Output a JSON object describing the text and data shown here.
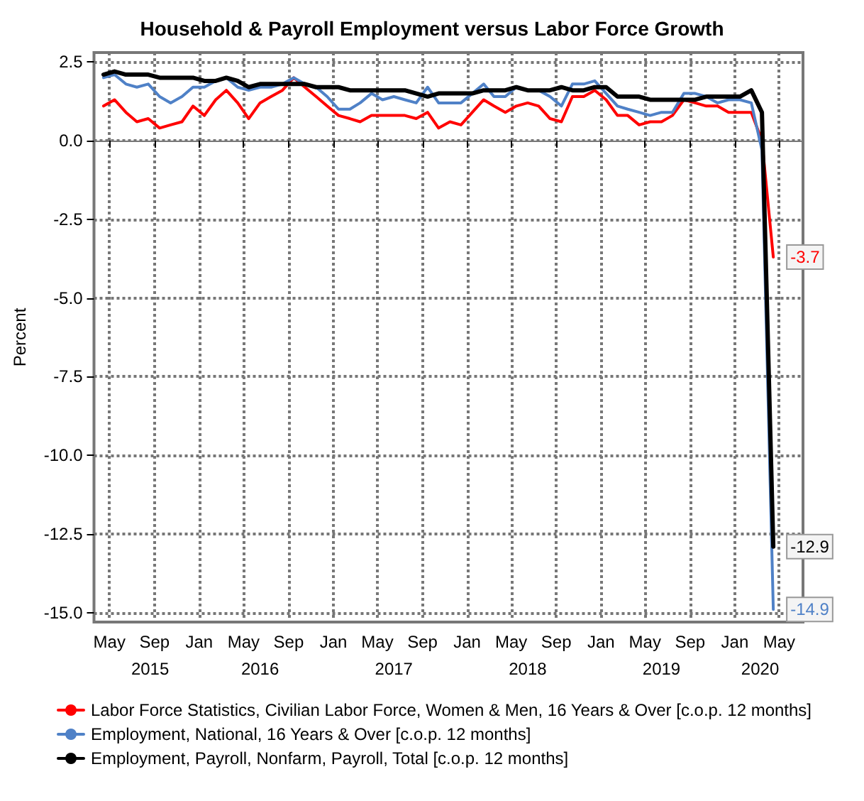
{
  "chart_data": {
    "type": "line",
    "title": "Household & Payroll Employment versus Labor Force Growth",
    "ylabel": "Percent",
    "x": [
      "2015-04-15",
      "2015-05-15",
      "2015-06-15",
      "2015-07-15",
      "2015-08-15",
      "2015-09-15",
      "2015-10-15",
      "2015-11-15",
      "2015-12-15",
      "2016-01-15",
      "2016-02-15",
      "2016-03-15",
      "2016-04-15",
      "2016-05-15",
      "2016-06-15",
      "2016-07-15",
      "2016-08-15",
      "2016-09-15",
      "2016-10-15",
      "2016-11-15",
      "2016-12-15",
      "2017-01-15",
      "2017-02-15",
      "2017-03-15",
      "2017-04-15",
      "2017-05-15",
      "2017-06-15",
      "2017-07-15",
      "2017-08-15",
      "2017-09-15",
      "2017-10-15",
      "2017-11-15",
      "2017-12-15",
      "2018-01-15",
      "2018-02-15",
      "2018-03-15",
      "2018-04-15",
      "2018-05-15",
      "2018-06-15",
      "2018-07-15",
      "2018-08-15",
      "2018-09-15",
      "2018-10-15",
      "2018-11-15",
      "2018-12-15",
      "2019-01-15",
      "2019-02-15",
      "2019-03-15",
      "2019-04-15",
      "2019-05-15",
      "2019-06-15",
      "2019-07-15",
      "2019-08-15",
      "2019-09-15",
      "2019-10-15",
      "2019-11-15",
      "2019-12-15",
      "2020-01-15",
      "2020-02-15",
      "2020-03-15",
      "2020-04-15"
    ],
    "series": [
      {
        "name": "Labor Force Statistics, Civilian Labor Force, Women & Men, 16 Years & Over [c.o.p. 12 months]",
        "color": "#ff0000",
        "values": [
          1.1,
          1.3,
          0.9,
          0.6,
          0.7,
          0.4,
          0.5,
          0.6,
          1.1,
          0.8,
          1.3,
          1.6,
          1.2,
          0.7,
          1.2,
          1.4,
          1.6,
          2.0,
          1.7,
          1.4,
          1.1,
          0.8,
          0.7,
          0.6,
          0.8,
          0.8,
          0.8,
          0.8,
          0.7,
          0.9,
          0.4,
          0.6,
          0.5,
          0.9,
          1.3,
          1.1,
          0.9,
          1.1,
          1.2,
          1.1,
          0.7,
          0.6,
          1.4,
          1.4,
          1.6,
          1.3,
          0.8,
          0.8,
          0.5,
          0.6,
          0.6,
          0.8,
          1.3,
          1.2,
          1.1,
          1.1,
          0.9,
          0.9,
          0.9,
          0.0,
          -3.7
        ],
        "value_labels": [
          null,
          null,
          null,
          null,
          null,
          null,
          null,
          null,
          null,
          null,
          null,
          null,
          null,
          null,
          null,
          null,
          null,
          null,
          null,
          null,
          null,
          null,
          null,
          null,
          null,
          null,
          null,
          null,
          null,
          null,
          null,
          null,
          null,
          null,
          null,
          null,
          null,
          null,
          null,
          null,
          null,
          null,
          null,
          null,
          null,
          null,
          null,
          null,
          null,
          null,
          null,
          null,
          null,
          null,
          null,
          null,
          null,
          null,
          null,
          null,
          "-3.7"
        ]
      },
      {
        "name": "Employment, National, 16 Years & Over [c.o.p. 12 months]",
        "color": "#4f81c7",
        "values": [
          2.0,
          2.1,
          1.8,
          1.7,
          1.8,
          1.4,
          1.2,
          1.4,
          1.7,
          1.7,
          1.9,
          2.0,
          1.7,
          1.6,
          1.7,
          1.7,
          1.8,
          2.0,
          1.8,
          1.7,
          1.4,
          1.0,
          1.0,
          1.2,
          1.5,
          1.3,
          1.4,
          1.3,
          1.2,
          1.7,
          1.2,
          1.2,
          1.2,
          1.5,
          1.8,
          1.4,
          1.4,
          1.7,
          1.6,
          1.6,
          1.4,
          1.1,
          1.8,
          1.8,
          1.9,
          1.5,
          1.1,
          1.0,
          0.9,
          0.8,
          0.9,
          0.9,
          1.5,
          1.5,
          1.4,
          1.2,
          1.3,
          1.3,
          1.2,
          -0.3,
          -14.9
        ],
        "value_labels": [
          null,
          null,
          null,
          null,
          null,
          null,
          null,
          null,
          null,
          null,
          null,
          null,
          null,
          null,
          null,
          null,
          null,
          null,
          null,
          null,
          null,
          null,
          null,
          null,
          null,
          null,
          null,
          null,
          null,
          null,
          null,
          null,
          null,
          null,
          null,
          null,
          null,
          null,
          null,
          null,
          null,
          null,
          null,
          null,
          null,
          null,
          null,
          null,
          null,
          null,
          null,
          null,
          null,
          null,
          null,
          null,
          null,
          null,
          null,
          null,
          "-14.9"
        ]
      },
      {
        "name": "Employment, Payroll, Nonfarm, Payroll, Total [c.o.p. 12 months]",
        "color": "#000000",
        "values": [
          2.1,
          2.2,
          2.1,
          2.1,
          2.1,
          2.0,
          2.0,
          2.0,
          2.0,
          1.9,
          1.9,
          2.0,
          1.9,
          1.7,
          1.8,
          1.8,
          1.8,
          1.8,
          1.8,
          1.7,
          1.7,
          1.7,
          1.6,
          1.6,
          1.6,
          1.6,
          1.6,
          1.6,
          1.5,
          1.4,
          1.5,
          1.5,
          1.5,
          1.5,
          1.6,
          1.6,
          1.6,
          1.7,
          1.6,
          1.6,
          1.6,
          1.7,
          1.6,
          1.6,
          1.7,
          1.7,
          1.4,
          1.4,
          1.4,
          1.3,
          1.3,
          1.3,
          1.3,
          1.3,
          1.4,
          1.4,
          1.4,
          1.4,
          1.6,
          0.9,
          -12.9
        ],
        "value_labels": [
          null,
          null,
          null,
          null,
          null,
          null,
          null,
          null,
          null,
          null,
          null,
          null,
          null,
          null,
          null,
          null,
          null,
          null,
          null,
          null,
          null,
          null,
          null,
          null,
          null,
          null,
          null,
          null,
          null,
          null,
          null,
          null,
          null,
          null,
          null,
          null,
          null,
          null,
          null,
          null,
          null,
          null,
          null,
          null,
          null,
          null,
          null,
          null,
          null,
          null,
          null,
          null,
          null,
          null,
          null,
          null,
          null,
          null,
          null,
          null,
          "-12.9"
        ]
      }
    ],
    "xlim": [
      "2015-03-20",
      "2020-07-05"
    ],
    "xticks": [
      {
        "value": "2015-05",
        "label": "May"
      },
      {
        "value": "2015-09",
        "label": "Sep"
      },
      {
        "value": "2016-01",
        "label": "Jan"
      },
      {
        "value": "2016-05",
        "label": "May"
      },
      {
        "value": "2016-09",
        "label": "Sep"
      },
      {
        "value": "2017-01",
        "label": "Jan"
      },
      {
        "value": "2017-05",
        "label": "May"
      },
      {
        "value": "2017-09",
        "label": "Sep"
      },
      {
        "value": "2018-01",
        "label": "Jan"
      },
      {
        "value": "2018-05",
        "label": "May"
      },
      {
        "value": "2018-09",
        "label": "Sep"
      },
      {
        "value": "2019-01",
        "label": "Jan"
      },
      {
        "value": "2019-05",
        "label": "May"
      },
      {
        "value": "2019-09",
        "label": "Sep"
      },
      {
        "value": "2020-01",
        "label": "Jan"
      },
      {
        "value": "2020-05",
        "label": "May"
      }
    ],
    "x2lim": [
      "2015-03-20",
      "2020-07-05"
    ],
    "x2ticks": [
      {
        "value": "2015-08-20",
        "label": "2015"
      },
      {
        "value": "2016-06-15",
        "label": "2016"
      },
      {
        "value": "2017-06-15",
        "label": "2017"
      },
      {
        "value": "2018-06-15",
        "label": "2018"
      },
      {
        "value": "2019-06-15",
        "label": "2019"
      },
      {
        "value": "2020-03-10",
        "label": "2020"
      }
    ],
    "ylim": [
      -15.3,
      2.8
    ],
    "yticks": [
      2.5,
      {
        "value": 0,
        "label": "0.0"
      },
      -2.5,
      {
        "value": -5,
        "label": "-5.0"
      },
      -7.5,
      {
        "value": -10,
        "label": "-10.0"
      },
      -12.5,
      {
        "value": -15,
        "label": "-15.0"
      }
    ],
    "grid": true,
    "legend": "bottom",
    "marker": "none",
    "line_style": "solid"
  }
}
